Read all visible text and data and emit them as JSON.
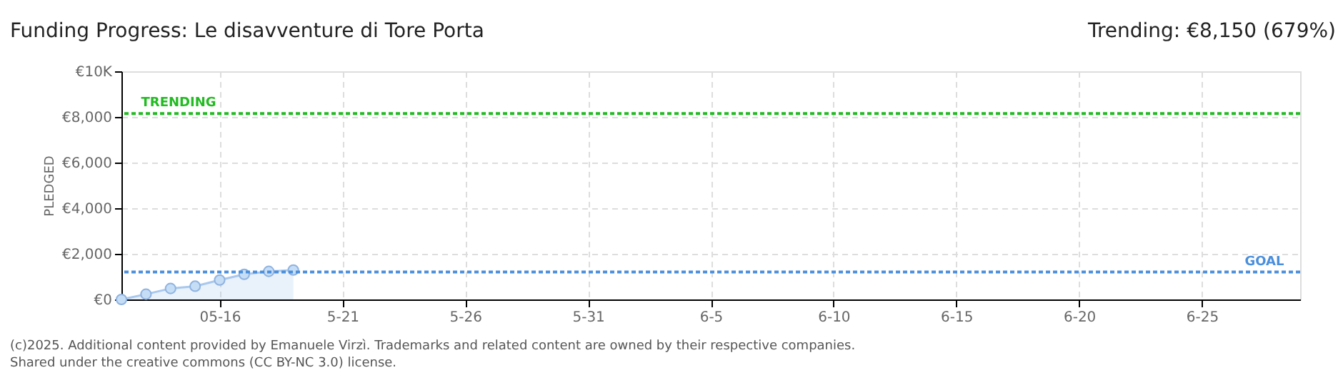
{
  "chart_data": {
    "type": "area",
    "title": "Funding Progress: Le disavventure di Tore Porta",
    "subtitle": "Trending: €8,150 (679%)",
    "ylabel": "PLEDGED",
    "x": [
      "2025-05-12",
      "2025-05-13",
      "2025-05-14",
      "2025-05-15",
      "2025-05-16",
      "2025-05-17",
      "2025-05-18",
      "2025-05-19"
    ],
    "series": [
      {
        "color": "#a8c8ee",
        "values": [
          0,
          230,
          480,
          580,
          850,
          1100,
          1230,
          1290
        ]
      }
    ],
    "marker": "circle",
    "grid": true,
    "xlim": [
      "2025-05-12",
      "2025-06-29"
    ],
    "xticks": [
      {
        "value": "2025-05-16",
        "label": "05-16"
      },
      {
        "value": "2025-05-21",
        "label": "5-21"
      },
      {
        "value": "2025-05-26",
        "label": "5-26"
      },
      {
        "value": "2025-05-31",
        "label": "5-31"
      },
      {
        "value": "2025-06-05",
        "label": "6-5"
      },
      {
        "value": "2025-06-10",
        "label": "6-10"
      },
      {
        "value": "2025-06-15",
        "label": "6-15"
      },
      {
        "value": "2025-06-20",
        "label": "6-20"
      },
      {
        "value": "2025-06-25",
        "label": "6-25"
      }
    ],
    "ylim": [
      0,
      10000
    ],
    "yticks": [
      {
        "value": 0,
        "label": "€0"
      },
      {
        "value": 2000,
        "label": "€2,000"
      },
      {
        "value": 4000,
        "label": "€4,000"
      },
      {
        "value": 6000,
        "label": "€6,000"
      },
      {
        "value": 8000,
        "label": "€8,000"
      },
      {
        "value": 10000,
        "label": "€10K"
      }
    ],
    "ref_lines": [
      {
        "axis": "y",
        "value": 8150,
        "label": "TRENDING",
        "color": "#22bb22",
        "line_style": "dotted"
      },
      {
        "axis": "y",
        "value": 1200,
        "label": "GOAL",
        "color": "#4a8fdc",
        "line_style": "dotted"
      }
    ],
    "annotations": [
      "(c)2025. Additional content provided by Emanuele Virzì. Trademarks and related content are owned by their respective companies.",
      "Shared under the creative commons (CC BY-NC 3.0) license."
    ]
  }
}
